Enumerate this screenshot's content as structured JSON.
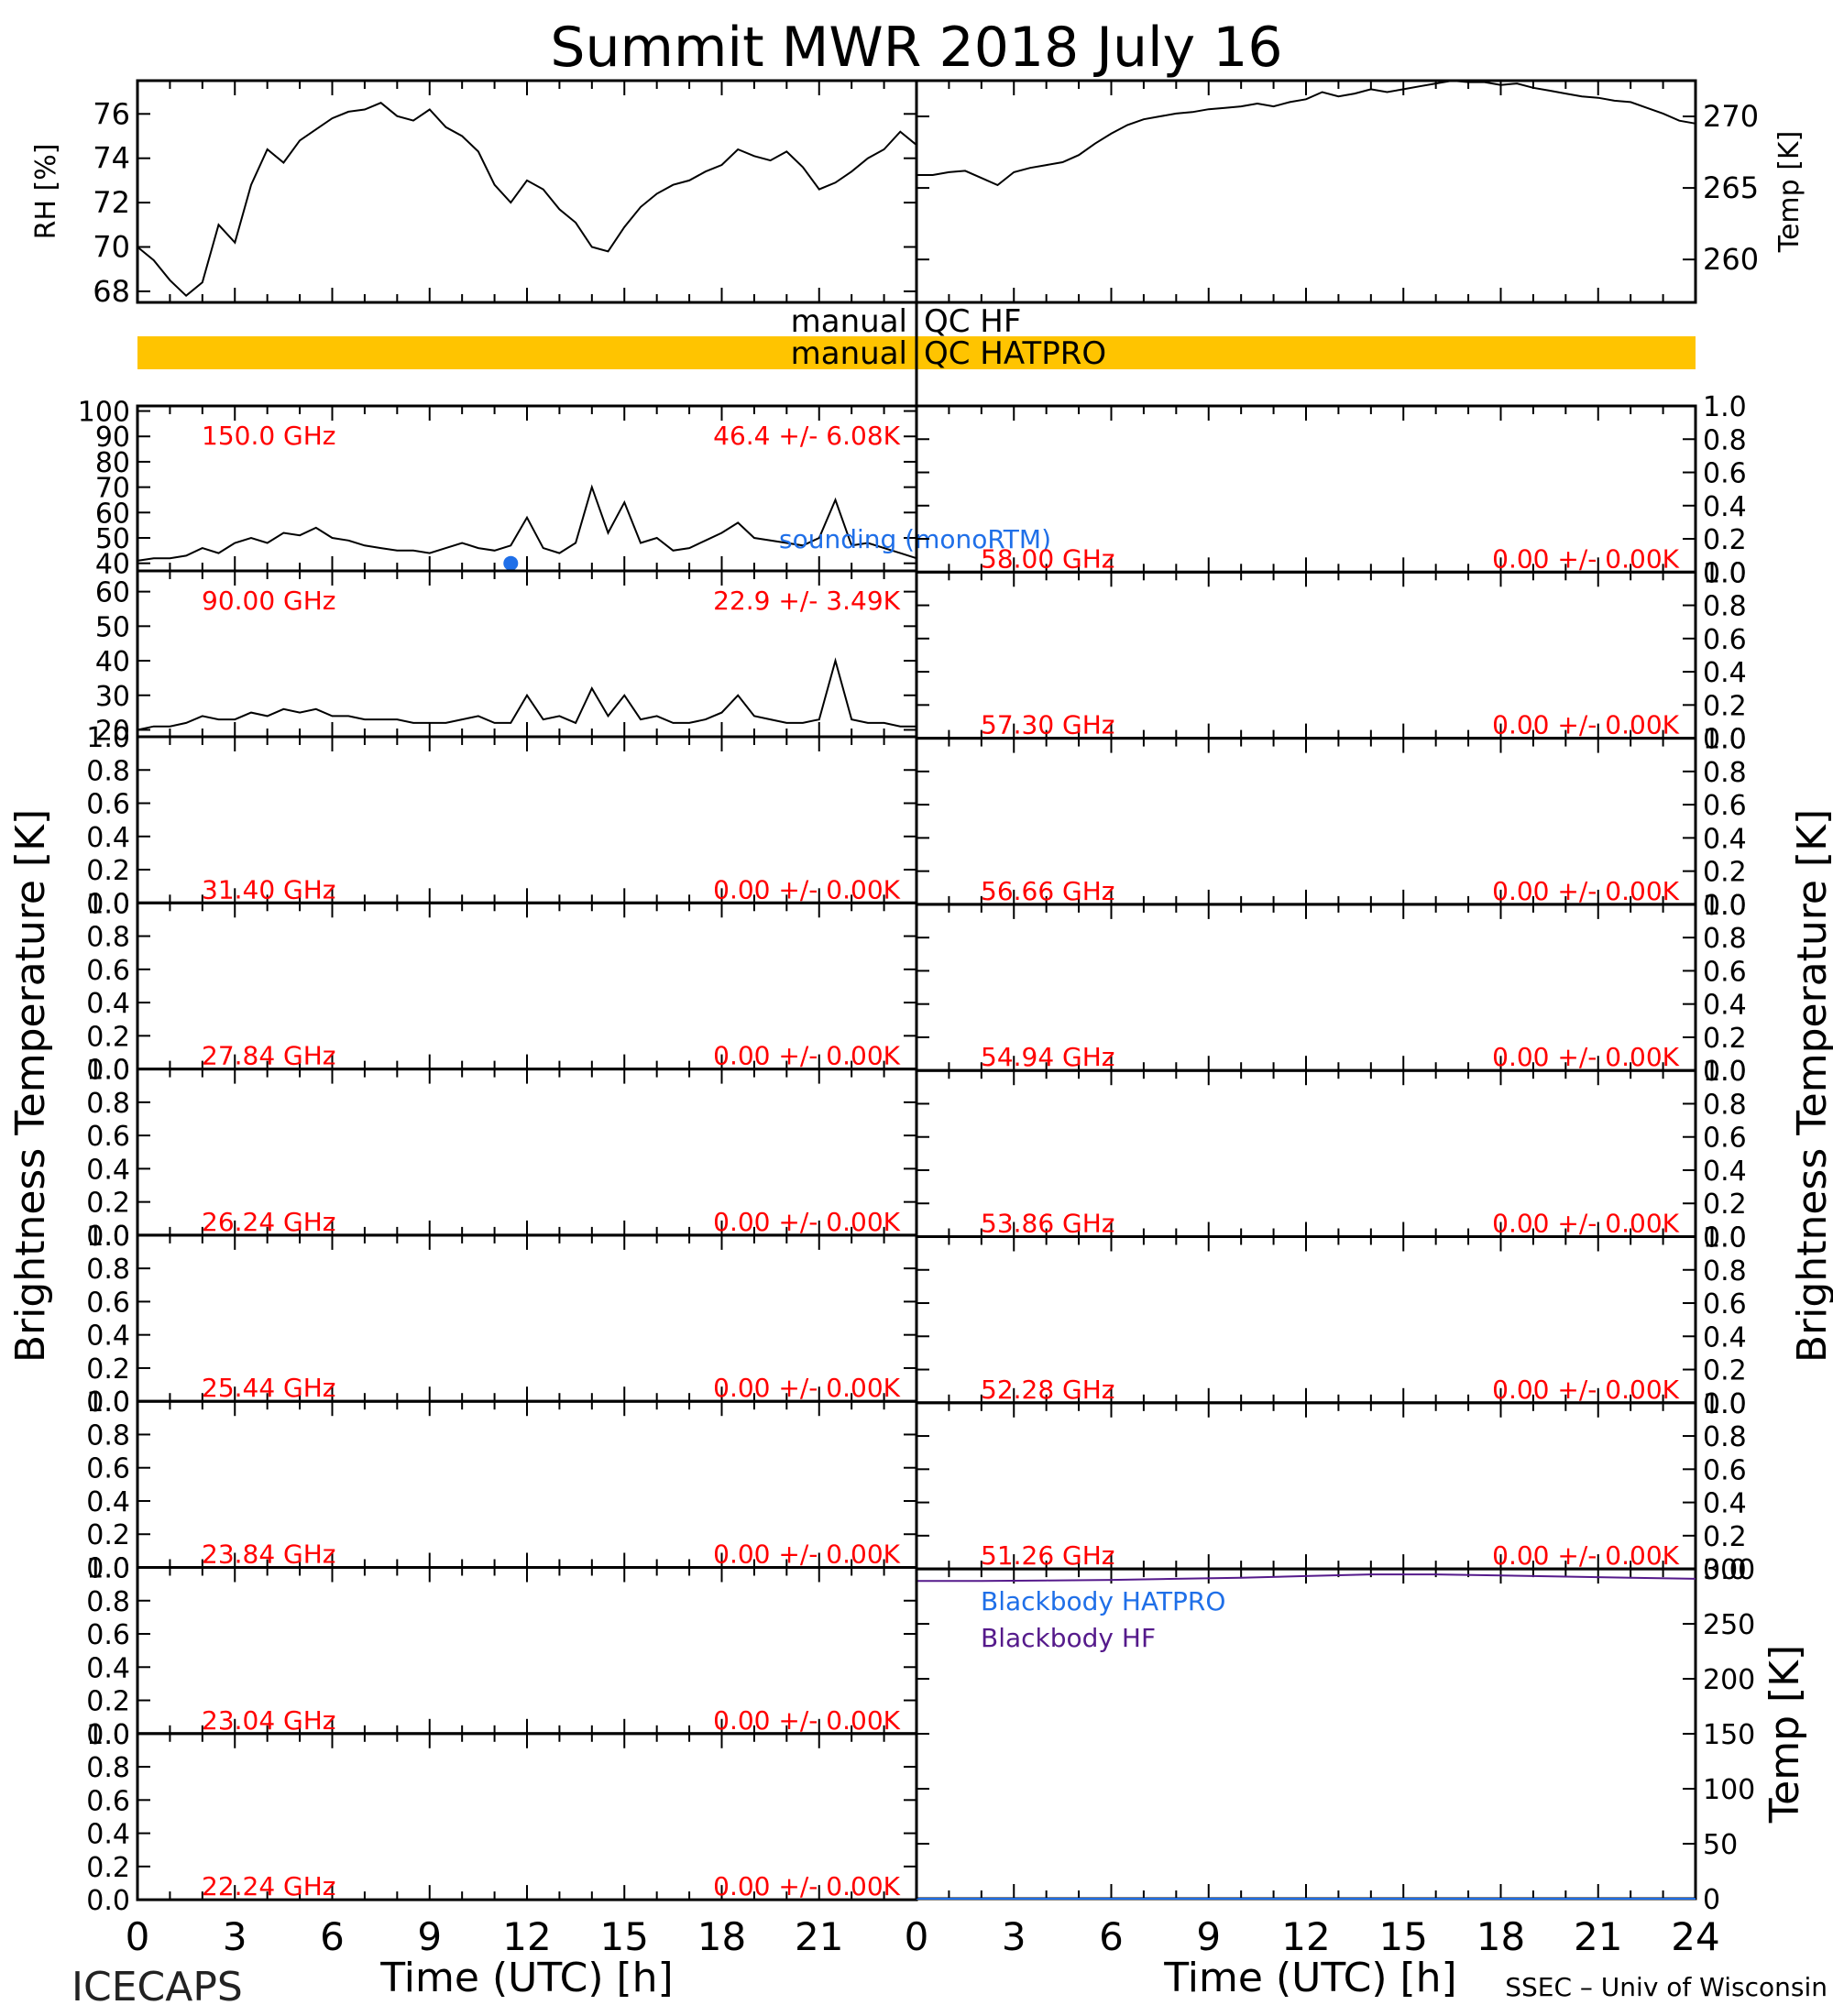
{
  "figure": {
    "title": "Summit MWR 2018 July 16",
    "footer_left": "ICECAPS",
    "footer_right": "SSEC – Univ of Wisconsin",
    "x_axis_label": "Time (UTC) [h]",
    "y_left_label": "Brightness Temperature [K]",
    "y_right_label": "Brightness Temperature [K]"
  },
  "qc_bars": {
    "hf_label_left": "manual",
    "hf_label_right": "QC HF",
    "hf_color": "#ffffff",
    "hatpro_label_left": "manual",
    "hatpro_label_right": "QC HATPRO",
    "hatpro_color": "#ffc400"
  },
  "colors": {
    "frequency_label": "#ff0000",
    "sounding": "#1f6fe8",
    "blackbody_hatpro": "#1f6fe8",
    "blackbody_hf": "#551a8b",
    "data": "#000000"
  },
  "chart_data": [
    {
      "type": "line",
      "panel": "rh",
      "ylabel": "RH [%]",
      "xlim": [
        0,
        24
      ],
      "ylim": [
        67.5,
        77.5
      ],
      "yticks": [
        68,
        70,
        72,
        74,
        76
      ],
      "x": [
        0,
        0.5,
        1,
        1.5,
        2,
        2.5,
        3,
        3.5,
        4,
        4.5,
        5,
        5.5,
        6,
        6.5,
        7,
        7.5,
        8,
        8.5,
        9,
        9.5,
        10,
        10.5,
        11,
        11.5,
        12,
        12.5,
        13,
        13.5,
        14,
        14.5,
        15,
        15.5,
        16,
        16.5,
        17,
        17.5,
        18,
        18.5,
        19,
        19.5,
        20,
        20.5,
        21,
        21.5,
        22,
        22.5,
        23,
        23.5,
        24
      ],
      "values": [
        70,
        69.4,
        68.5,
        67.8,
        68.4,
        71,
        70.2,
        72.8,
        74.4,
        73.8,
        74.8,
        75.3,
        75.8,
        76.1,
        76.2,
        76.5,
        75.9,
        75.7,
        76.2,
        75.4,
        75,
        74.3,
        72.8,
        72,
        73,
        72.6,
        71.7,
        71.1,
        70,
        69.8,
        70.9,
        71.8,
        72.4,
        72.8,
        73,
        73.4,
        73.7,
        74.4,
        74.1,
        73.9,
        74.3,
        73.6,
        72.6,
        72.9,
        73.4,
        74,
        74.4,
        75.2,
        74.6
      ]
    },
    {
      "type": "line",
      "panel": "temp",
      "ylabel": "Temp [K]",
      "xlim": [
        0,
        24
      ],
      "ylim": [
        257,
        272.5
      ],
      "yticks": [
        260,
        265,
        270
      ],
      "x": [
        0,
        0.5,
        1,
        1.5,
        2,
        2.5,
        3,
        3.5,
        4,
        4.5,
        5,
        5.5,
        6,
        6.5,
        7,
        7.5,
        8,
        8.5,
        9,
        9.5,
        10,
        10.5,
        11,
        11.5,
        12,
        12.5,
        13,
        13.5,
        14,
        14.5,
        15,
        15.5,
        16,
        16.5,
        17,
        17.5,
        18,
        18.5,
        19,
        19.5,
        20,
        20.5,
        21,
        21.5,
        22,
        22.5,
        23,
        23.5,
        24
      ],
      "values": [
        265.9,
        265.9,
        266.1,
        266.2,
        265.7,
        265.2,
        266.1,
        266.4,
        266.6,
        266.8,
        267.3,
        268.1,
        268.8,
        269.4,
        269.8,
        270,
        270.2,
        270.3,
        270.5,
        270.6,
        270.7,
        270.9,
        270.7,
        271,
        271.2,
        271.7,
        271.4,
        271.6,
        271.9,
        271.7,
        271.9,
        272.1,
        272.3,
        272.5,
        272.4,
        272.4,
        272.2,
        272.3,
        272,
        271.8,
        271.6,
        271.4,
        271.3,
        271.1,
        271,
        270.6,
        270.2,
        269.7,
        269.5
      ]
    },
    {
      "type": "line",
      "panel": "150",
      "frequency": "150.0 GHz",
      "stat": "46.4 +/-  6.08K",
      "annotation": "sounding (monoRTM)",
      "sounding_points": [
        {
          "x": 11.5,
          "y": 40
        }
      ],
      "xlim": [
        0,
        24
      ],
      "ylim": [
        37,
        102
      ],
      "yticks": [
        40,
        50,
        60,
        70,
        80,
        90,
        100
      ],
      "x": [
        0,
        0.5,
        1,
        1.5,
        2,
        2.5,
        3,
        3.5,
        4,
        4.5,
        5,
        5.5,
        6,
        6.5,
        7,
        7.5,
        8,
        8.5,
        9,
        9.5,
        10,
        10.5,
        11,
        11.5,
        12,
        12.5,
        13,
        13.5,
        14,
        14.5,
        15,
        15.5,
        16,
        16.5,
        17,
        17.5,
        18,
        18.5,
        19,
        19.5,
        20,
        20.5,
        21,
        21.5,
        22,
        22.5,
        23,
        23.5,
        24
      ],
      "values": [
        41,
        42,
        42,
        43,
        46,
        44,
        48,
        50,
        48,
        52,
        51,
        54,
        50,
        49,
        47,
        46,
        45,
        45,
        44,
        46,
        48,
        46,
        45,
        47,
        58,
        46,
        44,
        48,
        70,
        52,
        64,
        48,
        50,
        45,
        46,
        49,
        52,
        56,
        50,
        49,
        48,
        47,
        50,
        65,
        47,
        48,
        46,
        44,
        42
      ]
    },
    {
      "type": "line",
      "panel": "90",
      "frequency": "90.00 GHz",
      "stat": "22.9 +/-  3.49K",
      "xlim": [
        0,
        24
      ],
      "ylim": [
        18,
        66
      ],
      "yticks": [
        20,
        30,
        40,
        50,
        60
      ],
      "x": [
        0,
        0.5,
        1,
        1.5,
        2,
        2.5,
        3,
        3.5,
        4,
        4.5,
        5,
        5.5,
        6,
        6.5,
        7,
        7.5,
        8,
        8.5,
        9,
        9.5,
        10,
        10.5,
        11,
        11.5,
        12,
        12.5,
        13,
        13.5,
        14,
        14.5,
        15,
        15.5,
        16,
        16.5,
        17,
        17.5,
        18,
        18.5,
        19,
        19.5,
        20,
        20.5,
        21,
        21.5,
        22,
        22.5,
        23,
        23.5,
        24
      ],
      "values": [
        20,
        21,
        21,
        22,
        24,
        23,
        23,
        25,
        24,
        26,
        25,
        26,
        24,
        24,
        23,
        23,
        23,
        22,
        22,
        22,
        23,
        24,
        22,
        22,
        30,
        23,
        24,
        22,
        32,
        24,
        30,
        23,
        24,
        22,
        22,
        23,
        25,
        30,
        24,
        23,
        22,
        22,
        23,
        40,
        23,
        22,
        22,
        21,
        21
      ]
    },
    {
      "type": "line",
      "panel": "empty",
      "frequency": "31.40 GHz",
      "stat": "0.00 +/-  0.00K",
      "xlim": [
        0,
        24
      ],
      "ylim": [
        0,
        1
      ],
      "yticks": [
        0.0,
        0.2,
        0.4,
        0.6,
        0.8,
        1.0
      ]
    },
    {
      "type": "line",
      "panel": "empty",
      "frequency": "27.84 GHz",
      "stat": "0.00 +/-  0.00K",
      "xlim": [
        0,
        24
      ],
      "ylim": [
        0,
        1
      ],
      "yticks": [
        0.0,
        0.2,
        0.4,
        0.6,
        0.8,
        1.0
      ]
    },
    {
      "type": "line",
      "panel": "empty",
      "frequency": "26.24 GHz",
      "stat": "0.00 +/-  0.00K",
      "xlim": [
        0,
        24
      ],
      "ylim": [
        0,
        1
      ],
      "yticks": [
        0.0,
        0.2,
        0.4,
        0.6,
        0.8,
        1.0
      ]
    },
    {
      "type": "line",
      "panel": "empty",
      "frequency": "25.44 GHz",
      "stat": "0.00 +/-  0.00K",
      "xlim": [
        0,
        24
      ],
      "ylim": [
        0,
        1
      ],
      "yticks": [
        0.0,
        0.2,
        0.4,
        0.6,
        0.8,
        1.0
      ]
    },
    {
      "type": "line",
      "panel": "empty",
      "frequency": "23.84 GHz",
      "stat": "0.00 +/-  0.00K",
      "xlim": [
        0,
        24
      ],
      "ylim": [
        0,
        1
      ],
      "yticks": [
        0.0,
        0.2,
        0.4,
        0.6,
        0.8,
        1.0
      ]
    },
    {
      "type": "line",
      "panel": "empty",
      "frequency": "23.04 GHz",
      "stat": "0.00 +/-  0.00K",
      "xlim": [
        0,
        24
      ],
      "ylim": [
        0,
        1
      ],
      "yticks": [
        0.0,
        0.2,
        0.4,
        0.6,
        0.8,
        1.0
      ]
    },
    {
      "type": "line",
      "panel": "empty",
      "frequency": "22.24 GHz",
      "stat": "0.00 +/-  0.00K",
      "xlim": [
        0,
        24
      ],
      "ylim": [
        0,
        1
      ],
      "yticks": [
        0.0,
        0.2,
        0.4,
        0.6,
        0.8,
        1.0
      ]
    },
    {
      "type": "line",
      "panel": "empty",
      "frequency": "58.00 GHz",
      "stat": "0.00 +/-  0.00K",
      "xlim": [
        0,
        24
      ],
      "ylim": [
        0,
        1
      ],
      "yticks": [
        0.0,
        0.2,
        0.4,
        0.6,
        0.8,
        1.0
      ]
    },
    {
      "type": "line",
      "panel": "empty",
      "frequency": "57.30 GHz",
      "stat": "0.00 +/-  0.00K",
      "xlim": [
        0,
        24
      ],
      "ylim": [
        0,
        1
      ],
      "yticks": [
        0.0,
        0.2,
        0.4,
        0.6,
        0.8,
        1.0
      ]
    },
    {
      "type": "line",
      "panel": "empty",
      "frequency": "56.66 GHz",
      "stat": "0.00 +/-  0.00K",
      "xlim": [
        0,
        24
      ],
      "ylim": [
        0,
        1
      ],
      "yticks": [
        0.0,
        0.2,
        0.4,
        0.6,
        0.8,
        1.0
      ]
    },
    {
      "type": "line",
      "panel": "empty",
      "frequency": "54.94 GHz",
      "stat": "0.00 +/-  0.00K",
      "xlim": [
        0,
        24
      ],
      "ylim": [
        0,
        1
      ],
      "yticks": [
        0.0,
        0.2,
        0.4,
        0.6,
        0.8,
        1.0
      ]
    },
    {
      "type": "line",
      "panel": "empty",
      "frequency": "53.86 GHz",
      "stat": "0.00 +/-  0.00K",
      "xlim": [
        0,
        24
      ],
      "ylim": [
        0,
        1
      ],
      "yticks": [
        0.0,
        0.2,
        0.4,
        0.6,
        0.8,
        1.0
      ]
    },
    {
      "type": "line",
      "panel": "empty",
      "frequency": "52.28 GHz",
      "stat": "0.00 +/-  0.00K",
      "xlim": [
        0,
        24
      ],
      "ylim": [
        0,
        1
      ],
      "yticks": [
        0.0,
        0.2,
        0.4,
        0.6,
        0.8,
        1.0
      ]
    },
    {
      "type": "line",
      "panel": "empty",
      "frequency": "51.26 GHz",
      "stat": "0.00 +/-  0.00K",
      "xlim": [
        0,
        24
      ],
      "ylim": [
        0,
        1
      ],
      "yticks": [
        0.0,
        0.2,
        0.4,
        0.6,
        0.8,
        1.0
      ]
    },
    {
      "type": "line",
      "panel": "blackbody",
      "ylabel": "Temp [K]",
      "xlim": [
        0,
        24
      ],
      "ylim": [
        0,
        300
      ],
      "yticks": [
        0,
        50,
        100,
        150,
        200,
        250,
        300
      ],
      "series": [
        {
          "name": "Blackbody HATPRO",
          "x": [
            0,
            24
          ],
          "values": [
            0,
            0
          ]
        },
        {
          "name": "Blackbody HF",
          "x": [
            0,
            2,
            4,
            6,
            8,
            10,
            12,
            14,
            16,
            18,
            20,
            22,
            24
          ],
          "values": [
            289,
            289,
            289.5,
            290,
            291,
            292,
            293.5,
            295,
            295,
            294,
            293,
            292,
            291
          ]
        }
      ]
    }
  ],
  "x_ticks": [
    0,
    3,
    6,
    9,
    12,
    15,
    18,
    21,
    24
  ]
}
